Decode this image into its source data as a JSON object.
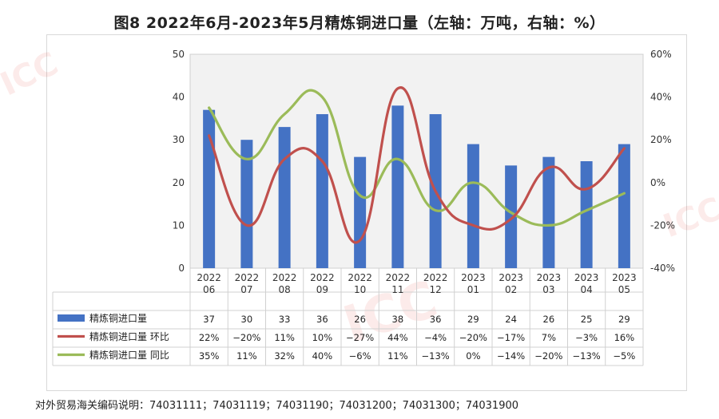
{
  "title": "图8  2022年6月-2023年5月精炼铜进口量（左轴：万吨，右轴：%）",
  "footnote": "对外贸易海关编码说明：74031111；74031119；74031190；74031200；74031300；74031900",
  "chart_data": {
    "type": "bar",
    "categories": [
      [
        "2022",
        "06"
      ],
      [
        "2022",
        "07"
      ],
      [
        "2022",
        "08"
      ],
      [
        "2022",
        "09"
      ],
      [
        "2022",
        "10"
      ],
      [
        "2022",
        "11"
      ],
      [
        "2022",
        "12"
      ],
      [
        "2023",
        "01"
      ],
      [
        "2023",
        "02"
      ],
      [
        "2023",
        "03"
      ],
      [
        "2023",
        "04"
      ],
      [
        "2023",
        "05"
      ]
    ],
    "y_left": {
      "min": 0,
      "max": 50,
      "ticks": [
        "0",
        "10",
        "20",
        "30",
        "40",
        "50"
      ]
    },
    "y_right": {
      "min": -40,
      "max": 60,
      "ticks": [
        "-40%",
        "-20%",
        "0%",
        "20%",
        "40%",
        "60%"
      ]
    },
    "grid": false,
    "legend_position": "bottom-table",
    "series": [
      {
        "name": "精炼铜进口量",
        "kind": "bar",
        "axis": "left",
        "color": "#4472C4",
        "values": [
          37,
          30,
          33,
          36,
          26,
          38,
          36,
          29,
          24,
          26,
          25,
          29
        ],
        "labels": [
          "37",
          "30",
          "33",
          "36",
          "26",
          "38",
          "36",
          "29",
          "24",
          "26",
          "25",
          "29"
        ]
      },
      {
        "name": "精炼铜进口量 环比",
        "kind": "line",
        "axis": "right",
        "color": "#C0504D",
        "values": [
          22,
          -20,
          11,
          10,
          -27,
          44,
          -4,
          -20,
          -17,
          7,
          -3,
          16
        ],
        "labels": [
          "22%",
          "−20%",
          "11%",
          "10%",
          "−27%",
          "44%",
          "−4%",
          "−20%",
          "−17%",
          "7%",
          "−3%",
          "16%"
        ]
      },
      {
        "name": "精炼铜进口量  同比",
        "kind": "line",
        "axis": "right",
        "color": "#9BBB59",
        "values": [
          35,
          11,
          32,
          40,
          -6,
          11,
          -13,
          0,
          -14,
          -20,
          -13,
          -5
        ],
        "labels": [
          "35%",
          "11%",
          "32%",
          "40%",
          "−6%",
          "11%",
          "−13%",
          "0%",
          "−14%",
          "−20%",
          "−13%",
          "−5%"
        ]
      }
    ]
  },
  "watermark_text": "ICC鑫闻网"
}
